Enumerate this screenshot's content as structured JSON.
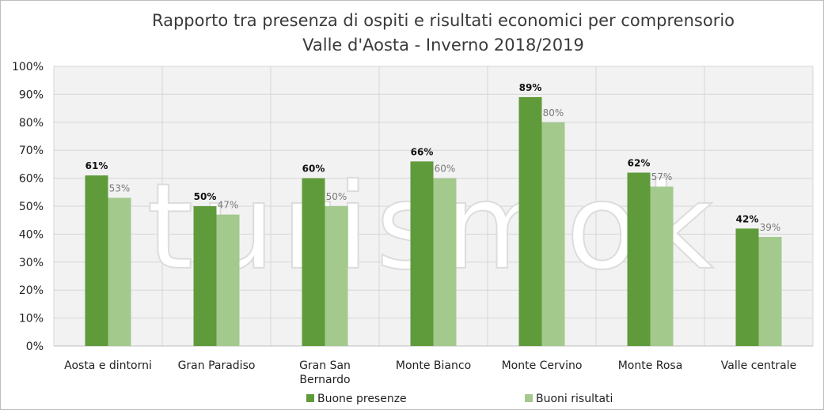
{
  "chart_data": {
    "type": "bar",
    "title": "Rapporto tra presenza di ospiti e risultati economici per comprensorio",
    "subtitle": "Valle d'Aosta - Inverno 2018/2019",
    "categories": [
      [
        "Aosta e dintorni"
      ],
      [
        "Gran Paradiso"
      ],
      [
        "Gran San",
        "Bernardo"
      ],
      [
        "Monte Bianco"
      ],
      [
        "Monte Cervino"
      ],
      [
        "Monte Rosa"
      ],
      [
        "Valle centrale"
      ]
    ],
    "series": [
      {
        "name": "Buone presenze",
        "color": "#5f9b3a",
        "values": [
          61,
          50,
          60,
          66,
          89,
          62,
          42
        ]
      },
      {
        "name": "Buoni risultati",
        "color": "#a3c98d",
        "values": [
          53,
          47,
          50,
          60,
          80,
          57,
          39
        ]
      }
    ],
    "ylim": [
      0,
      100
    ],
    "ytick_step": 10,
    "value_suffix": "%",
    "grid": true,
    "legend": "bottom",
    "watermark": "turismok",
    "plot_background": "#f2f2f2"
  }
}
